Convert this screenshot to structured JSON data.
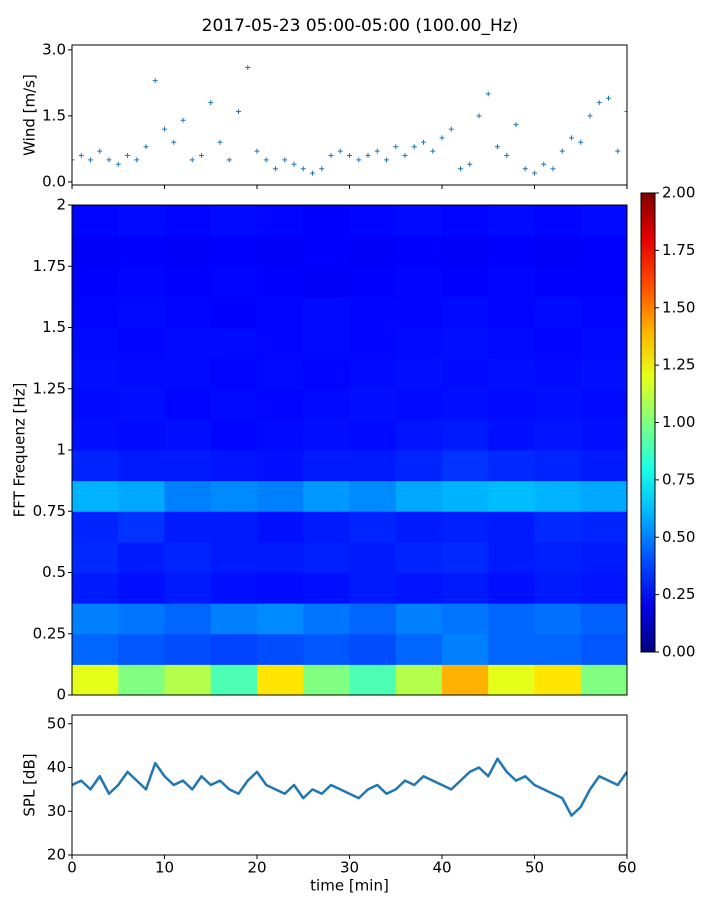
{
  "title": "2017-05-23 05:00-05:00 (100.00_Hz)",
  "chart_data": [
    {
      "type": "scatter",
      "ylabel": "Wind [m/s]",
      "color": "#1f77b4",
      "x": [
        0,
        1,
        2,
        3,
        4,
        5,
        6,
        7,
        8,
        9,
        10,
        11,
        12,
        13,
        14,
        15,
        16,
        17,
        18,
        19,
        20,
        21,
        22,
        23,
        24,
        25,
        26,
        27,
        28,
        29,
        30,
        31,
        32,
        33,
        34,
        35,
        36,
        37,
        38,
        39,
        40,
        41,
        42,
        43,
        44,
        45,
        46,
        47,
        48,
        49,
        50,
        51,
        52,
        53,
        54,
        55,
        56,
        57,
        58,
        59,
        60
      ],
      "values": [
        0.5,
        0.6,
        0.5,
        0.7,
        0.5,
        0.4,
        0.6,
        0.5,
        0.8,
        2.3,
        1.2,
        0.9,
        1.4,
        0.5,
        0.6,
        1.8,
        0.9,
        0.5,
        1.6,
        2.6,
        0.7,
        0.5,
        0.3,
        0.5,
        0.4,
        0.3,
        0.2,
        0.3,
        0.6,
        0.7,
        0.6,
        0.5,
        0.6,
        0.7,
        0.5,
        0.8,
        0.6,
        0.8,
        0.9,
        0.7,
        1.0,
        1.2,
        0.3,
        0.4,
        1.5,
        2.0,
        0.8,
        0.6,
        1.3,
        0.3,
        0.2,
        0.4,
        0.3,
        0.7,
        1.0,
        0.9,
        1.5,
        1.8,
        1.9,
        0.7,
        1.6
      ],
      "xlim": [
        0,
        60
      ],
      "xticks": [
        0,
        10,
        20,
        30,
        40,
        50,
        60
      ],
      "ylim": [
        -0.07,
        3.11
      ],
      "yticks": [
        {
          "value": 0,
          "label": "0.0"
        },
        {
          "value": 1.5,
          "label": "1.5"
        },
        {
          "value": 3,
          "label": "3.0"
        }
      ]
    },
    {
      "type": "heatmap",
      "ylabel": "FFT Frequenz [Hz]",
      "colormap": "jet",
      "x_edges": [
        0,
        5,
        10,
        15,
        20,
        25,
        30,
        35,
        40,
        45,
        50,
        55,
        60
      ],
      "y_edges": [
        0,
        0.125,
        0.25,
        0.375,
        0.5,
        0.625,
        0.75,
        0.875,
        1,
        1.125,
        1.25,
        1.375,
        1.5,
        1.625,
        1.75,
        1.875,
        2
      ],
      "values": [
        [
          1.2,
          1.0,
          1.1,
          0.9,
          1.3,
          1.0,
          0.9,
          1.1,
          1.4,
          1.2,
          1.3,
          1.0
        ],
        [
          0.45,
          0.42,
          0.4,
          0.38,
          0.4,
          0.42,
          0.4,
          0.45,
          0.5,
          0.45,
          0.45,
          0.42
        ],
        [
          0.5,
          0.48,
          0.45,
          0.5,
          0.52,
          0.48,
          0.45,
          0.5,
          0.48,
          0.45,
          0.47,
          0.44
        ],
        [
          0.3,
          0.28,
          0.3,
          0.28,
          0.27,
          0.28,
          0.3,
          0.29,
          0.3,
          0.28,
          0.3,
          0.29
        ],
        [
          0.33,
          0.3,
          0.32,
          0.3,
          0.3,
          0.31,
          0.3,
          0.32,
          0.33,
          0.3,
          0.31,
          0.3
        ],
        [
          0.32,
          0.35,
          0.3,
          0.3,
          0.28,
          0.3,
          0.32,
          0.3,
          0.31,
          0.3,
          0.33,
          0.32
        ],
        [
          0.6,
          0.58,
          0.5,
          0.52,
          0.5,
          0.55,
          0.52,
          0.58,
          0.6,
          0.62,
          0.6,
          0.58
        ],
        [
          0.32,
          0.3,
          0.3,
          0.29,
          0.28,
          0.3,
          0.3,
          0.32,
          0.35,
          0.33,
          0.32,
          0.3
        ],
        [
          0.28,
          0.27,
          0.28,
          0.26,
          0.27,
          0.28,
          0.27,
          0.29,
          0.3,
          0.28,
          0.29,
          0.28
        ],
        [
          0.27,
          0.28,
          0.26,
          0.27,
          0.26,
          0.27,
          0.28,
          0.27,
          0.28,
          0.27,
          0.28,
          0.27
        ],
        [
          0.28,
          0.27,
          0.27,
          0.26,
          0.27,
          0.26,
          0.27,
          0.28,
          0.27,
          0.28,
          0.27,
          0.28
        ],
        [
          0.27,
          0.26,
          0.27,
          0.27,
          0.26,
          0.27,
          0.26,
          0.27,
          0.28,
          0.27,
          0.26,
          0.27
        ],
        [
          0.26,
          0.27,
          0.26,
          0.25,
          0.26,
          0.27,
          0.26,
          0.26,
          0.27,
          0.26,
          0.27,
          0.26
        ],
        [
          0.25,
          0.26,
          0.25,
          0.26,
          0.25,
          0.24,
          0.25,
          0.26,
          0.25,
          0.26,
          0.25,
          0.25
        ],
        [
          0.24,
          0.25,
          0.24,
          0.25,
          0.24,
          0.25,
          0.24,
          0.25,
          0.24,
          0.25,
          0.24,
          0.25
        ],
        [
          0.26,
          0.27,
          0.26,
          0.27,
          0.26,
          0.25,
          0.26,
          0.27,
          0.26,
          0.27,
          0.26,
          0.27
        ]
      ],
      "xlim": [
        0,
        60
      ],
      "ylim": [
        0,
        2
      ],
      "yticks": [
        0,
        0.25,
        0.5,
        0.75,
        1,
        1.25,
        1.5,
        1.75,
        2
      ],
      "colorbar": {
        "lim": [
          0,
          2
        ],
        "ticks": [
          {
            "value": 0,
            "label": "0.00"
          },
          {
            "value": 0.25,
            "label": "0.25"
          },
          {
            "value": 0.5,
            "label": "0.50"
          },
          {
            "value": 0.75,
            "label": "0.75"
          },
          {
            "value": 1,
            "label": "1.00"
          },
          {
            "value": 1.25,
            "label": "1.25"
          },
          {
            "value": 1.5,
            "label": "1.50"
          },
          {
            "value": 1.75,
            "label": "1.75"
          },
          {
            "value": 2,
            "label": "2.00"
          }
        ]
      }
    },
    {
      "type": "line",
      "ylabel": "SPL [dB]",
      "xlabel": "time [min]",
      "color": "#1f77b4",
      "x": [
        0,
        1,
        2,
        3,
        4,
        5,
        6,
        7,
        8,
        9,
        10,
        11,
        12,
        13,
        14,
        15,
        16,
        17,
        18,
        19,
        20,
        21,
        22,
        23,
        24,
        25,
        26,
        27,
        28,
        29,
        30,
        31,
        32,
        33,
        34,
        35,
        36,
        37,
        38,
        39,
        40,
        41,
        42,
        43,
        44,
        45,
        46,
        47,
        48,
        49,
        50,
        51,
        52,
        53,
        54,
        55,
        56,
        57,
        58,
        59,
        60
      ],
      "values": [
        36,
        37,
        35,
        38,
        34,
        36,
        39,
        37,
        35,
        41,
        38,
        36,
        37,
        35,
        38,
        36,
        37,
        35,
        34,
        37,
        39,
        36,
        35,
        34,
        36,
        33,
        35,
        34,
        36,
        35,
        34,
        33,
        35,
        36,
        34,
        35,
        37,
        36,
        38,
        37,
        36,
        35,
        37,
        39,
        40,
        38,
        42,
        39,
        37,
        38,
        36,
        35,
        34,
        33,
        29,
        31,
        35,
        38,
        37,
        36,
        39
      ],
      "xlim": [
        0,
        60
      ],
      "xticks": [
        0,
        10,
        20,
        30,
        40,
        50,
        60
      ],
      "ylim": [
        20,
        52
      ],
      "yticks": [
        20,
        30,
        40,
        50
      ]
    }
  ]
}
